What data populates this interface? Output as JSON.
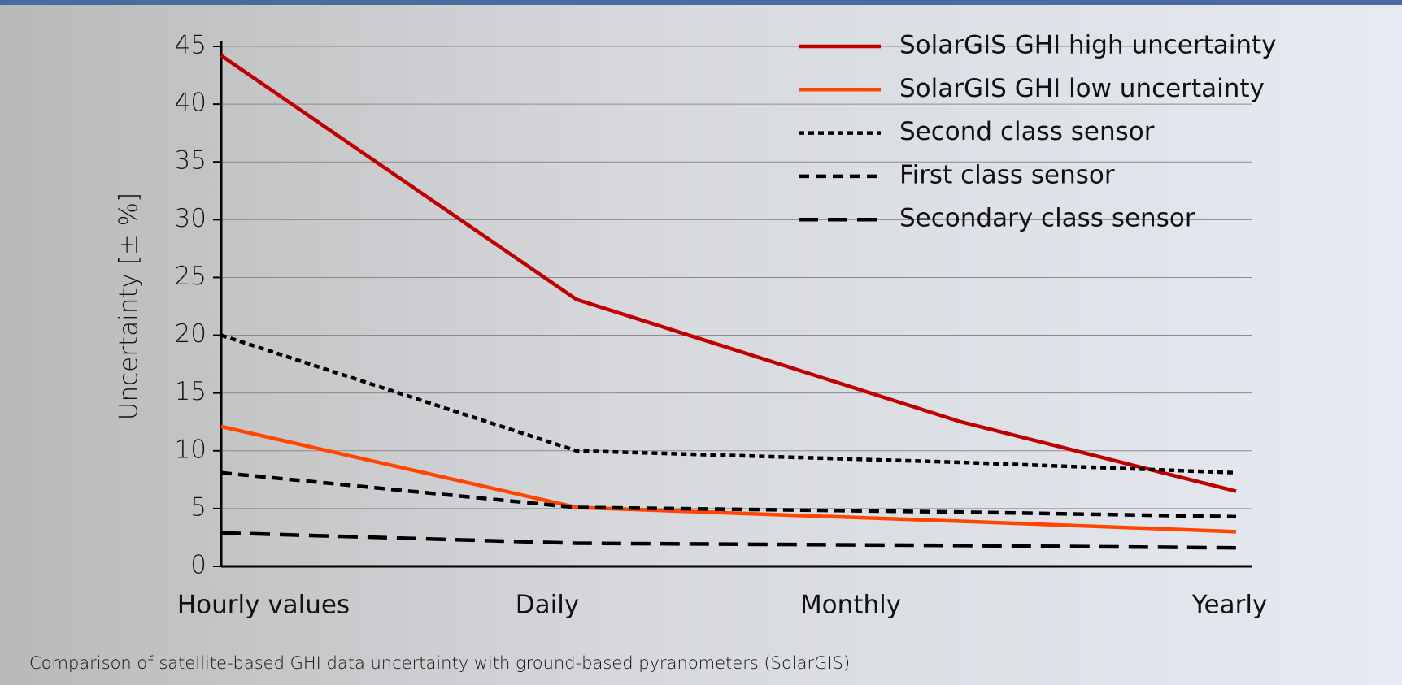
{
  "chart_data": {
    "type": "line",
    "caption": "Comparison of satellite-based GHI data uncertainty with ground-based pyranometers (SolarGIS)",
    "y_label": "Uncertainty [± %]",
    "categories": [
      "Hourly values",
      "Daily",
      "Monthly",
      "Yearly"
    ],
    "series": [
      {
        "name": "SolarGIS GHI high uncertainty",
        "color": "#c00000",
        "dash": "solid",
        "values": [
          44.2,
          23.1,
          12.5,
          6.5
        ]
      },
      {
        "name": "SolarGIS GHI low uncertainty",
        "color": "#ff4500",
        "dash": "solid",
        "values": [
          12.1,
          5.1,
          3.9,
          3.0
        ]
      },
      {
        "name": "Second class sensor",
        "color": "#000000",
        "dash": "dotted",
        "values": [
          20,
          10,
          9.0,
          8.1
        ]
      },
      {
        "name": "First class sensor",
        "color": "#000000",
        "dash": "dashed",
        "values": [
          8.1,
          5.1,
          4.7,
          4.3
        ]
      },
      {
        "name": "Secondary class sensor",
        "color": "#000000",
        "dash": "longdash",
        "values": [
          2.9,
          2.0,
          1.8,
          1.6
        ]
      }
    ],
    "ylim": [
      0,
      45
    ],
    "yticks": [
      0,
      5,
      10,
      15,
      20,
      25,
      30,
      35,
      40,
      45
    ],
    "grid": true,
    "legend": "upper right"
  }
}
